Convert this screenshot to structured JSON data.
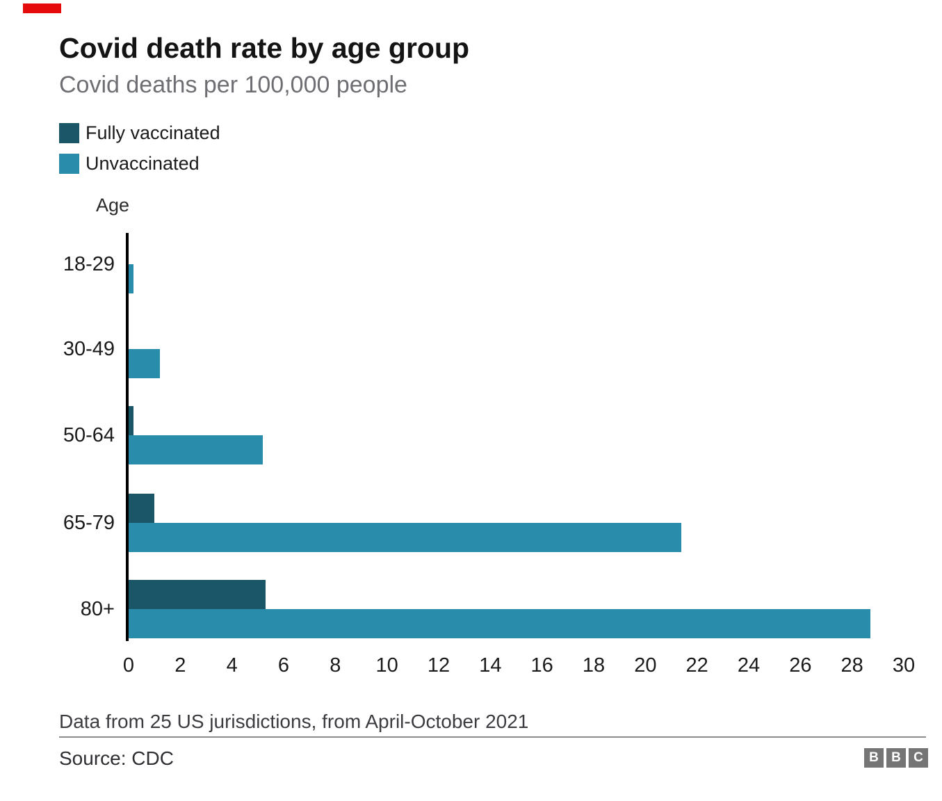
{
  "header": {
    "title": "Covid death rate by age group",
    "subtitle": "Covid deaths per 100,000 people"
  },
  "legend": [
    {
      "label": "Fully vaccinated",
      "color": "#1a5568"
    },
    {
      "label": "Unvaccinated",
      "color": "#2a8cab"
    }
  ],
  "chart_data": {
    "type": "bar",
    "orientation": "horizontal",
    "title": "Covid death rate by age group",
    "subtitle": "Covid deaths per 100,000 people",
    "axis_title": "Age",
    "categories": [
      "18-29",
      "30-49",
      "50-64",
      "65-79",
      "80+"
    ],
    "series": [
      {
        "name": "Fully vaccinated",
        "color": "#1a5568",
        "values": [
          0,
          0,
          0.2,
          1.0,
          5.3
        ]
      },
      {
        "name": "Unvaccinated",
        "color": "#2a8cab",
        "values": [
          0.2,
          1.2,
          5.2,
          21.4,
          28.7
        ]
      }
    ],
    "xlim": [
      0,
      30
    ],
    "x_ticks": [
      0,
      2,
      4,
      6,
      8,
      10,
      12,
      14,
      16,
      18,
      20,
      22,
      24,
      26,
      28,
      30
    ],
    "grid": false,
    "legend_position": "top-left"
  },
  "footer": {
    "note": "Data from 25 US jurisdictions, from April-October 2021",
    "source": "Source: CDC",
    "logo": [
      "B",
      "B",
      "C"
    ]
  },
  "decorations": {
    "red_marker_color": "#e60b0b",
    "axis_color": "#000000"
  }
}
